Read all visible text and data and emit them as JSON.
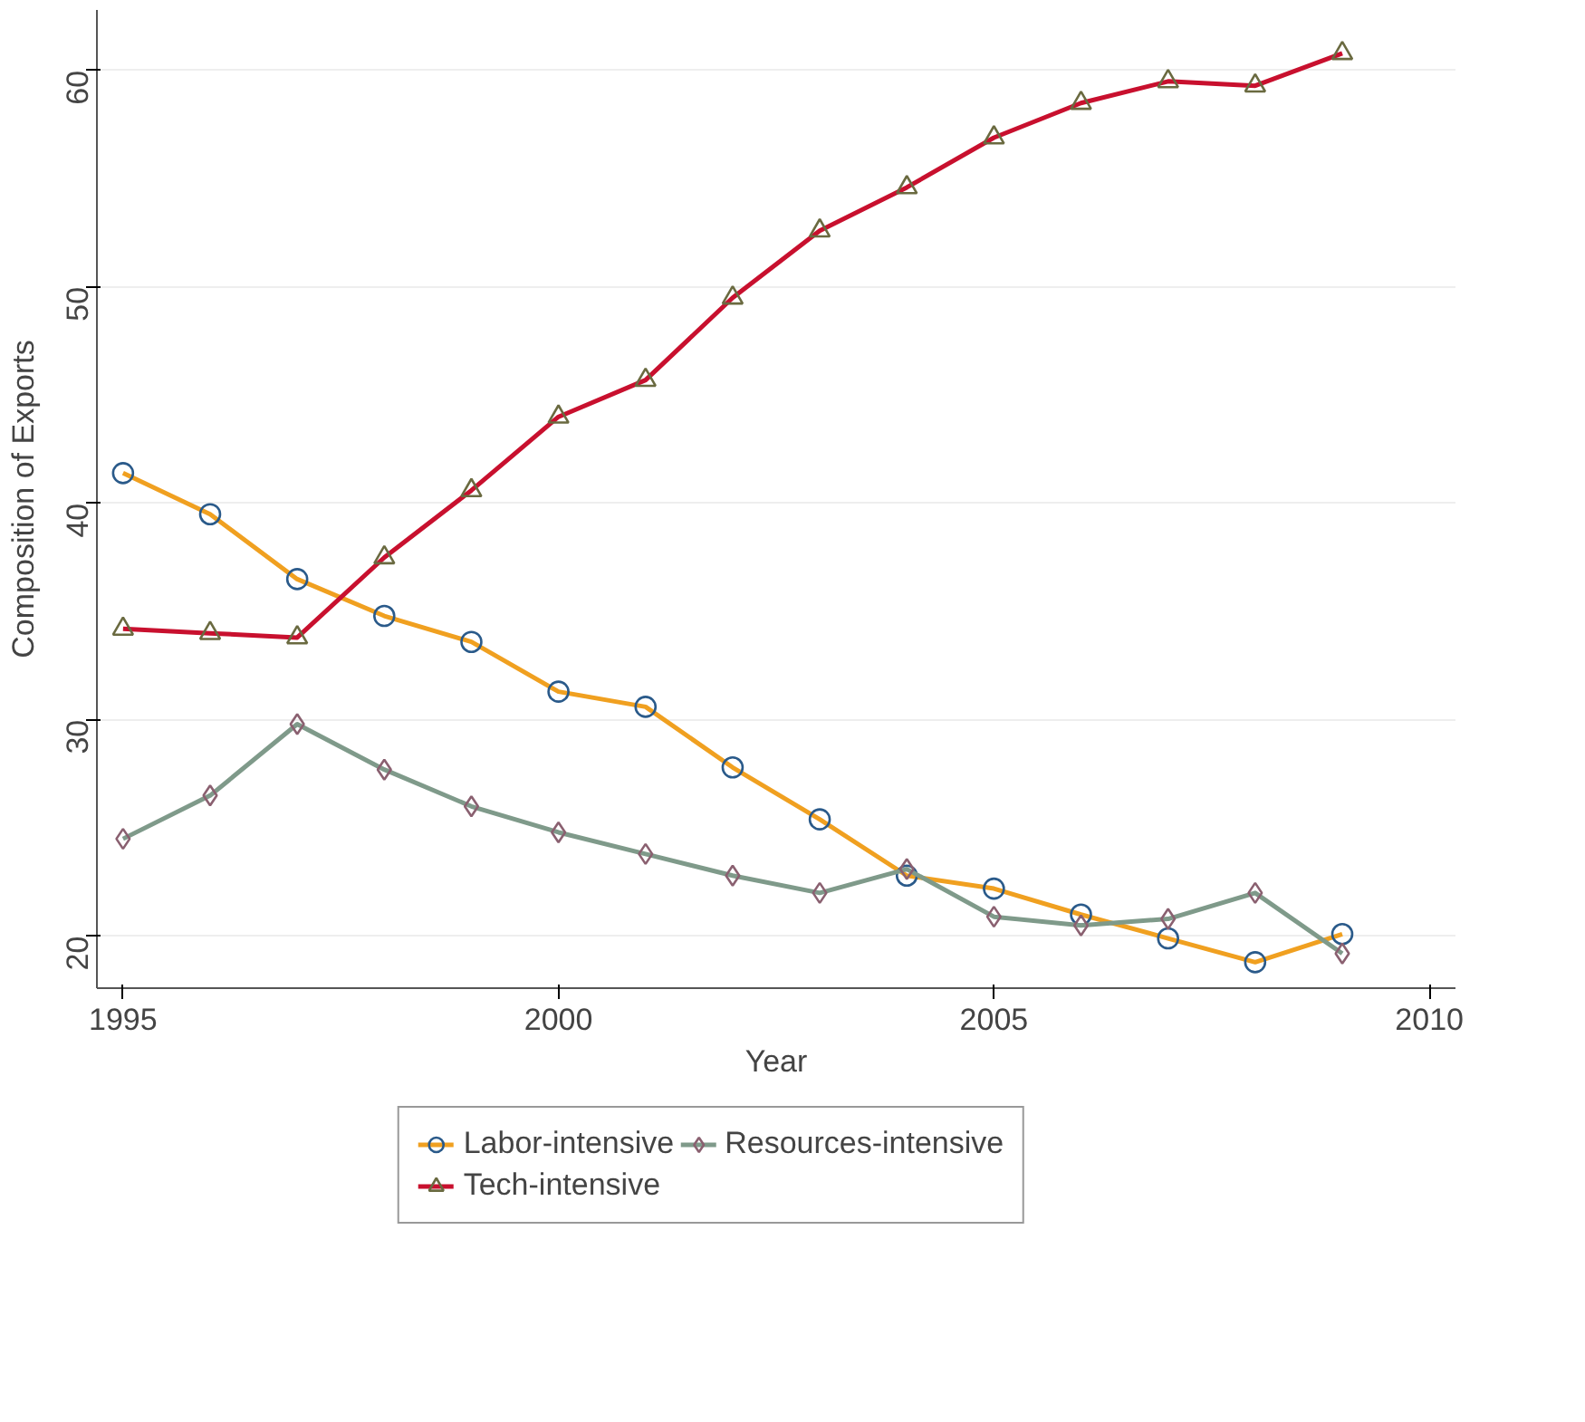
{
  "chart_data": {
    "type": "line",
    "xlabel": "Year",
    "ylabel": "Composition of Exports",
    "x": [
      1995,
      1996,
      1997,
      1998,
      1999,
      2000,
      2001,
      2002,
      2003,
      2004,
      2005,
      2006,
      2007,
      2008,
      2009
    ],
    "series": [
      {
        "name": "Labor-intensive",
        "color": "#f0a020",
        "marker": "circle",
        "values": [
          41.4,
          39.5,
          36.5,
          34.8,
          33.6,
          31.3,
          30.6,
          27.8,
          25.4,
          22.8,
          22.2,
          21.0,
          19.9,
          18.8,
          20.1
        ]
      },
      {
        "name": "Resources-intensive",
        "color": "#7f9a8a",
        "marker": "diamond",
        "values": [
          24.5,
          26.5,
          29.8,
          27.7,
          26.0,
          24.8,
          23.8,
          22.8,
          22.0,
          23.1,
          20.9,
          20.5,
          20.8,
          22.0,
          19.2
        ]
      },
      {
        "name": "Tech-intensive",
        "color": "#c8102e",
        "marker": "triangle",
        "values": [
          34.2,
          34.0,
          33.8,
          37.5,
          40.6,
          44.0,
          45.7,
          49.5,
          52.6,
          54.6,
          56.9,
          58.5,
          59.5,
          59.3,
          60.8
        ]
      }
    ],
    "xlim": [
      1994.7,
      2010.3
    ],
    "ylim": [
      17.6,
      62.8
    ],
    "xticks": [
      1995,
      2000,
      2005,
      2010
    ],
    "yticks": [
      20,
      30,
      40,
      50,
      60
    ],
    "grid": "y",
    "legend": "bottom",
    "line_style": "solid"
  }
}
